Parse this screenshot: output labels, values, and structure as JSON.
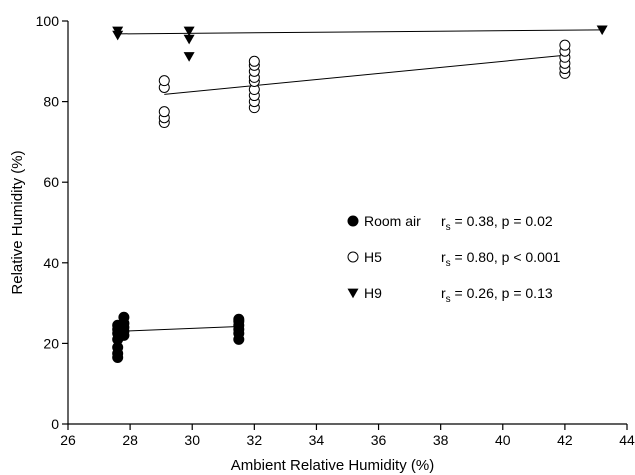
{
  "chart_data": {
    "type": "scatter",
    "xlabel": "Ambient Relative Humidity (%)",
    "ylabel": "Relative Humidity (%)",
    "xlim": [
      26,
      44
    ],
    "ylim": [
      0,
      100
    ],
    "xticks": [
      26,
      28,
      30,
      32,
      34,
      36,
      38,
      40,
      42,
      44
    ],
    "yticks": [
      0,
      20,
      40,
      60,
      80,
      100
    ],
    "grid": false,
    "legend_position": "right-center",
    "series": [
      {
        "name": "Room air",
        "marker": "filled-circle",
        "stat": "r",
        "stat_sub": "s",
        "stat_rest": " = 0.38, p = 0.02",
        "points": [
          [
            27.6,
            16.5
          ],
          [
            27.6,
            17.5
          ],
          [
            27.6,
            19
          ],
          [
            27.6,
            21
          ],
          [
            27.6,
            22.5
          ],
          [
            27.6,
            23.5
          ],
          [
            27.6,
            24.5
          ],
          [
            27.8,
            22
          ],
          [
            27.8,
            23
          ],
          [
            27.8,
            24
          ],
          [
            27.8,
            25
          ],
          [
            27.8,
            26.5
          ],
          [
            31.5,
            21
          ],
          [
            31.5,
            22.5
          ],
          [
            31.5,
            23.5
          ],
          [
            31.5,
            24.5
          ],
          [
            31.5,
            25.5
          ],
          [
            31.5,
            26
          ]
        ],
        "fit": [
          [
            27.6,
            23
          ],
          [
            31.5,
            24.2
          ]
        ]
      },
      {
        "name": "H5",
        "marker": "open-circle",
        "stat": "r",
        "stat_sub": "s",
        "stat_rest": " = 0.80, p < 0.001",
        "points": [
          [
            29.1,
            74.8
          ],
          [
            29.1,
            76
          ],
          [
            29.1,
            77.5
          ],
          [
            29.1,
            83.5
          ],
          [
            29.1,
            85.2
          ],
          [
            32.0,
            78.5
          ],
          [
            32.0,
            80
          ],
          [
            32.0,
            81.5
          ],
          [
            32.0,
            83
          ],
          [
            32.0,
            85
          ],
          [
            32.0,
            86
          ],
          [
            32.0,
            87.5
          ],
          [
            32.0,
            89
          ],
          [
            32.0,
            90
          ],
          [
            42.0,
            87
          ],
          [
            42.0,
            88.2
          ],
          [
            42.0,
            89.5
          ],
          [
            42.0,
            91
          ],
          [
            42.0,
            92.5
          ],
          [
            42.0,
            94
          ]
        ],
        "fit": [
          [
            29.1,
            81.8
          ],
          [
            42.0,
            91.5
          ]
        ]
      },
      {
        "name": "H9",
        "marker": "filled-triangle-down",
        "stat": "r",
        "stat_sub": "s",
        "stat_rest": " = 0.26, p = 0.13",
        "points": [
          [
            27.6,
            96.5
          ],
          [
            27.6,
            97.5
          ],
          [
            29.9,
            91.2
          ],
          [
            29.9,
            95.5
          ],
          [
            29.9,
            97.5
          ],
          [
            43.2,
            97.8
          ]
        ],
        "fit": [
          [
            27.6,
            96.8
          ],
          [
            43.2,
            97.8
          ]
        ]
      }
    ]
  }
}
